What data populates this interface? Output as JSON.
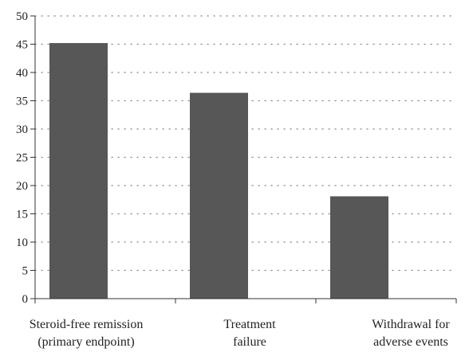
{
  "chart_data": {
    "type": "bar",
    "categories": [
      [
        "Steroid-free remission",
        "(primary endpoint)"
      ],
      [
        "Treatment",
        "failure"
      ],
      [
        "Withdrawal for",
        "adverse events"
      ]
    ],
    "values": [
      45.2,
      36.4,
      18.1
    ],
    "title": "",
    "xlabel": "",
    "ylabel": "",
    "ylim": [
      0,
      50
    ],
    "yticks": [
      0,
      5,
      10,
      15,
      20,
      25,
      30,
      35,
      40,
      45,
      50
    ],
    "grid": true,
    "grid_style": "dotted",
    "legend": "none",
    "bar_color": "#575757",
    "axis_color": "#333333",
    "grid_color": "#888888"
  }
}
